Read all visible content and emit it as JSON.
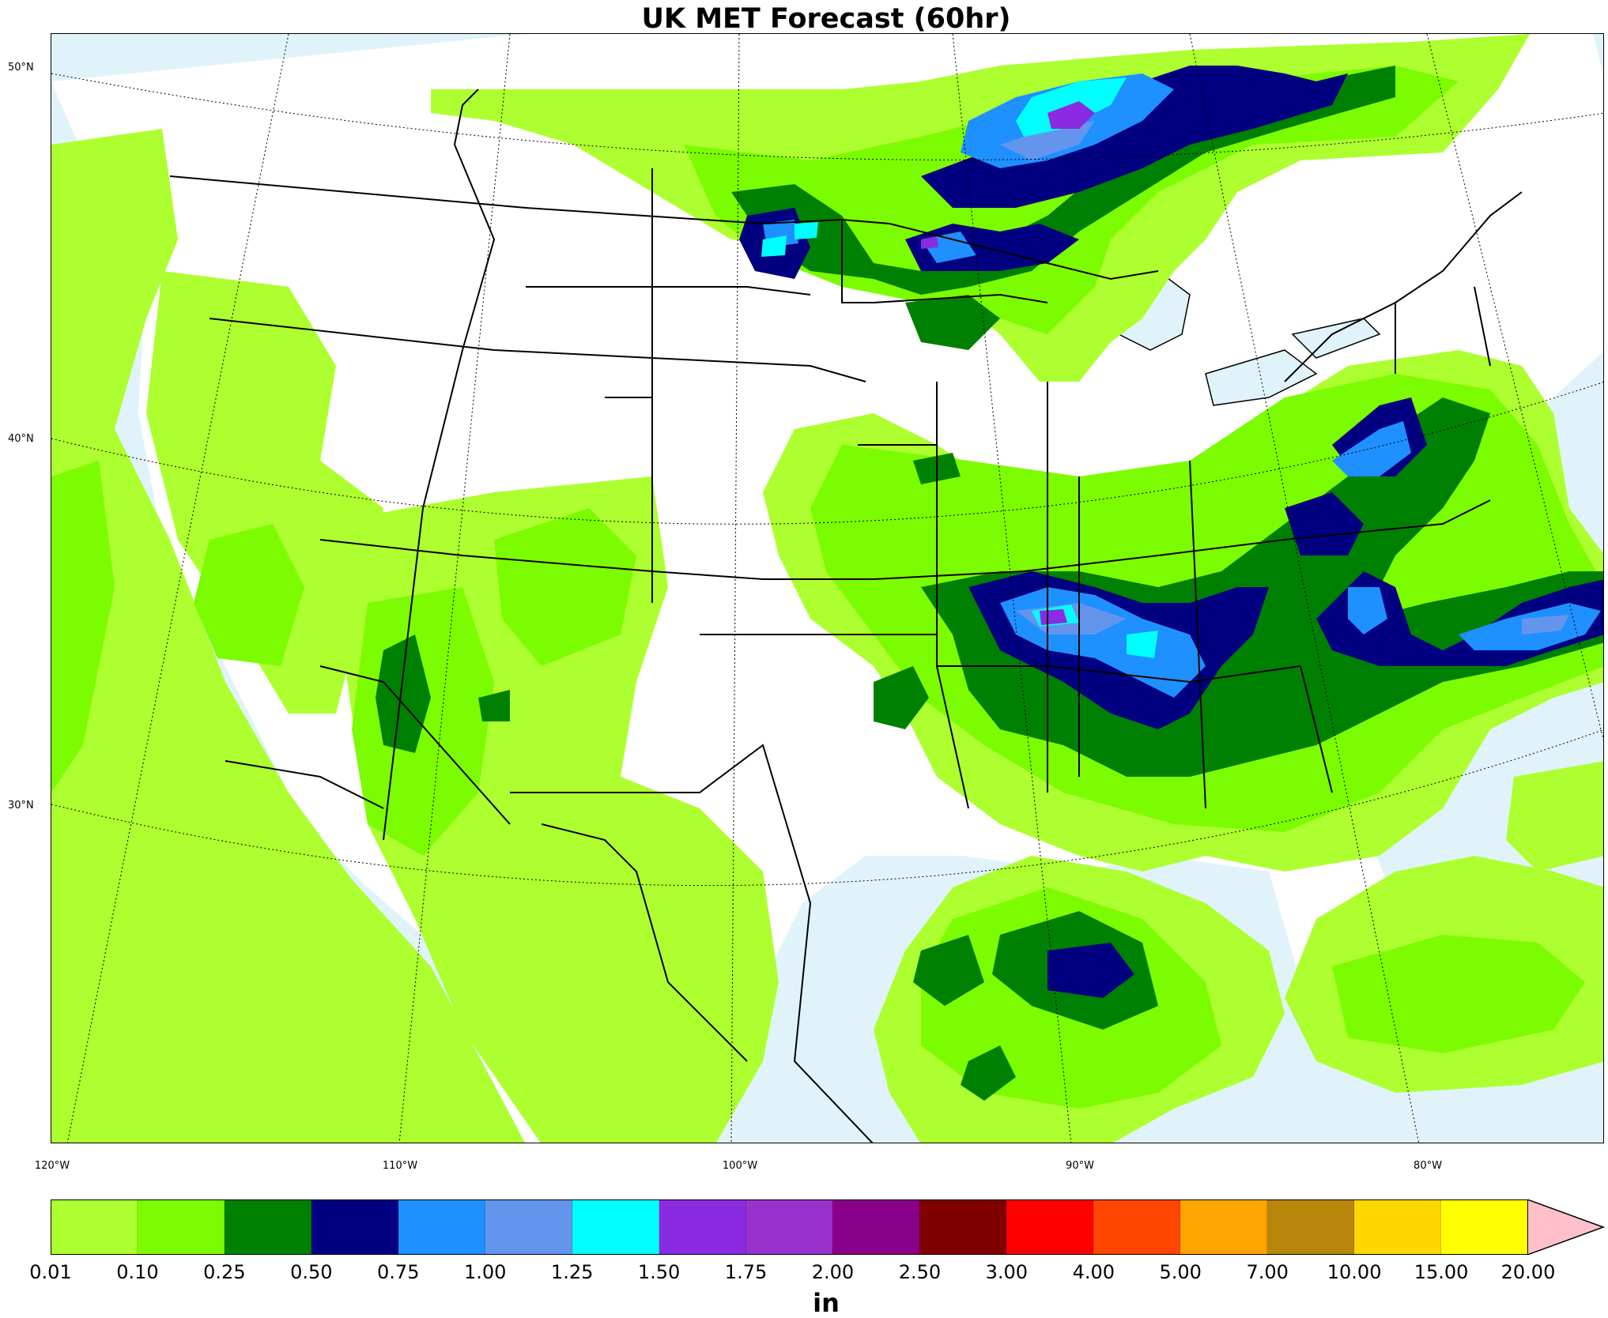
{
  "title": "UK MET Forecast (60hr)",
  "map": {
    "lat_labels": [
      "50°N",
      "40°N",
      "30°N"
    ],
    "lon_labels": [
      "120°W",
      "110°W",
      "100°W",
      "90°W",
      "80°W"
    ]
  },
  "colorbar": {
    "unit": "in",
    "ticks": [
      "0.01",
      "0.10",
      "0.25",
      "0.50",
      "0.75",
      "1.00",
      "1.25",
      "1.50",
      "1.75",
      "2.00",
      "2.50",
      "3.00",
      "4.00",
      "5.00",
      "7.00",
      "10.00",
      "15.00",
      "20.00"
    ],
    "colors": [
      "#adff2f",
      "#7cfc00",
      "#008000",
      "#000080",
      "#1e90ff",
      "#6495ed",
      "#00ffff",
      "#8a2be2",
      "#9932cc",
      "#8b008b",
      "#800000",
      "#ff0000",
      "#ff4500",
      "#ffa500",
      "#b8860b",
      "#ffd700",
      "#ffff00"
    ],
    "extend_color": "#ffc0cb"
  }
}
